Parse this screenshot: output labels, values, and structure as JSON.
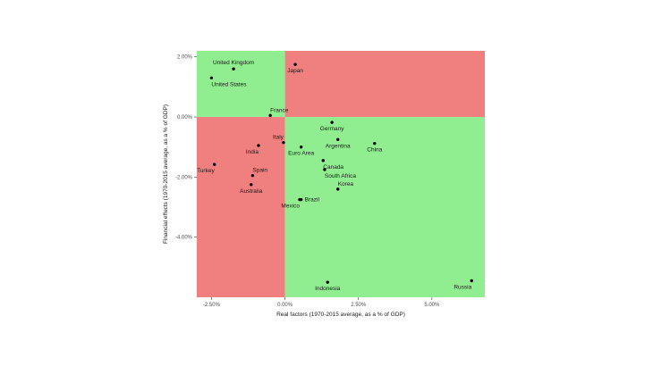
{
  "chart_data": {
    "type": "scatter",
    "xlabel": "Real factors (1970-2015 average, as a % of GDP)",
    "ylabel": "Financial effects (1970-2015 average, as a % of GDP)",
    "xlim": [
      -3.0,
      6.8
    ],
    "ylim": [
      -6.0,
      2.2
    ],
    "x_ticks": [
      {
        "value": -2.5,
        "label": "-2.50%"
      },
      {
        "value": 0.0,
        "label": "0.00%"
      },
      {
        "value": 2.5,
        "label": "2.50%"
      },
      {
        "value": 5.0,
        "label": "5.00%"
      }
    ],
    "y_ticks": [
      {
        "value": 2.0,
        "label": "2.00%"
      },
      {
        "value": 0.0,
        "label": "0.00%"
      },
      {
        "value": -2.0,
        "label": "-2.00%"
      },
      {
        "value": -4.0,
        "label": "-4.00%"
      }
    ],
    "quadrant_colors": {
      "top_left": "#90EE90",
      "top_right": "#F08080",
      "bottom_left": "#F08080",
      "bottom_right": "#90EE90"
    },
    "point_color": "#000000",
    "grid": false,
    "points": [
      {
        "label": "United Kingdom",
        "x": -1.75,
        "y": 1.6,
        "label_pos": "above"
      },
      {
        "label": "United States",
        "x": -2.5,
        "y": 1.3,
        "label_pos": "below-right"
      },
      {
        "label": "Japan",
        "x": 0.35,
        "y": 1.75,
        "label_pos": "below"
      },
      {
        "label": "France",
        "x": -0.5,
        "y": 0.05,
        "label_pos": "above-right"
      },
      {
        "label": "Germany",
        "x": 1.6,
        "y": -0.18,
        "label_pos": "below"
      },
      {
        "label": "Italy",
        "x": -0.05,
        "y": -0.85,
        "label_pos": "above-left"
      },
      {
        "label": "India",
        "x": -0.9,
        "y": -0.95,
        "label_pos": "below-left"
      },
      {
        "label": "Argentina",
        "x": 1.8,
        "y": -0.75,
        "label_pos": "below"
      },
      {
        "label": "China",
        "x": 3.05,
        "y": -0.88,
        "label_pos": "below"
      },
      {
        "label": "Euro Area",
        "x": 0.55,
        "y": -1.0,
        "label_pos": "below"
      },
      {
        "label": "Turkey",
        "x": -2.4,
        "y": -1.58,
        "label_pos": "below-left"
      },
      {
        "label": "Canada",
        "x": 1.3,
        "y": -1.45,
        "label_pos": "below-right"
      },
      {
        "label": "South Africa",
        "x": 1.35,
        "y": -1.75,
        "label_pos": "below-right"
      },
      {
        "label": "Spain",
        "x": -1.1,
        "y": -1.95,
        "label_pos": "above-right"
      },
      {
        "label": "Australia",
        "x": -1.15,
        "y": -2.25,
        "label_pos": "below"
      },
      {
        "label": "Korea",
        "x": 1.8,
        "y": -2.4,
        "label_pos": "above-right"
      },
      {
        "label": "Brazil",
        "x": 0.55,
        "y": -2.75,
        "label_pos": "right"
      },
      {
        "label": "Mexico",
        "x": 0.5,
        "y": -2.75,
        "label_pos": "below-left"
      },
      {
        "label": "Indonesia",
        "x": 1.45,
        "y": -5.5,
        "label_pos": "below"
      },
      {
        "label": "Russia",
        "x": 6.35,
        "y": -5.45,
        "label_pos": "below-left"
      }
    ]
  }
}
